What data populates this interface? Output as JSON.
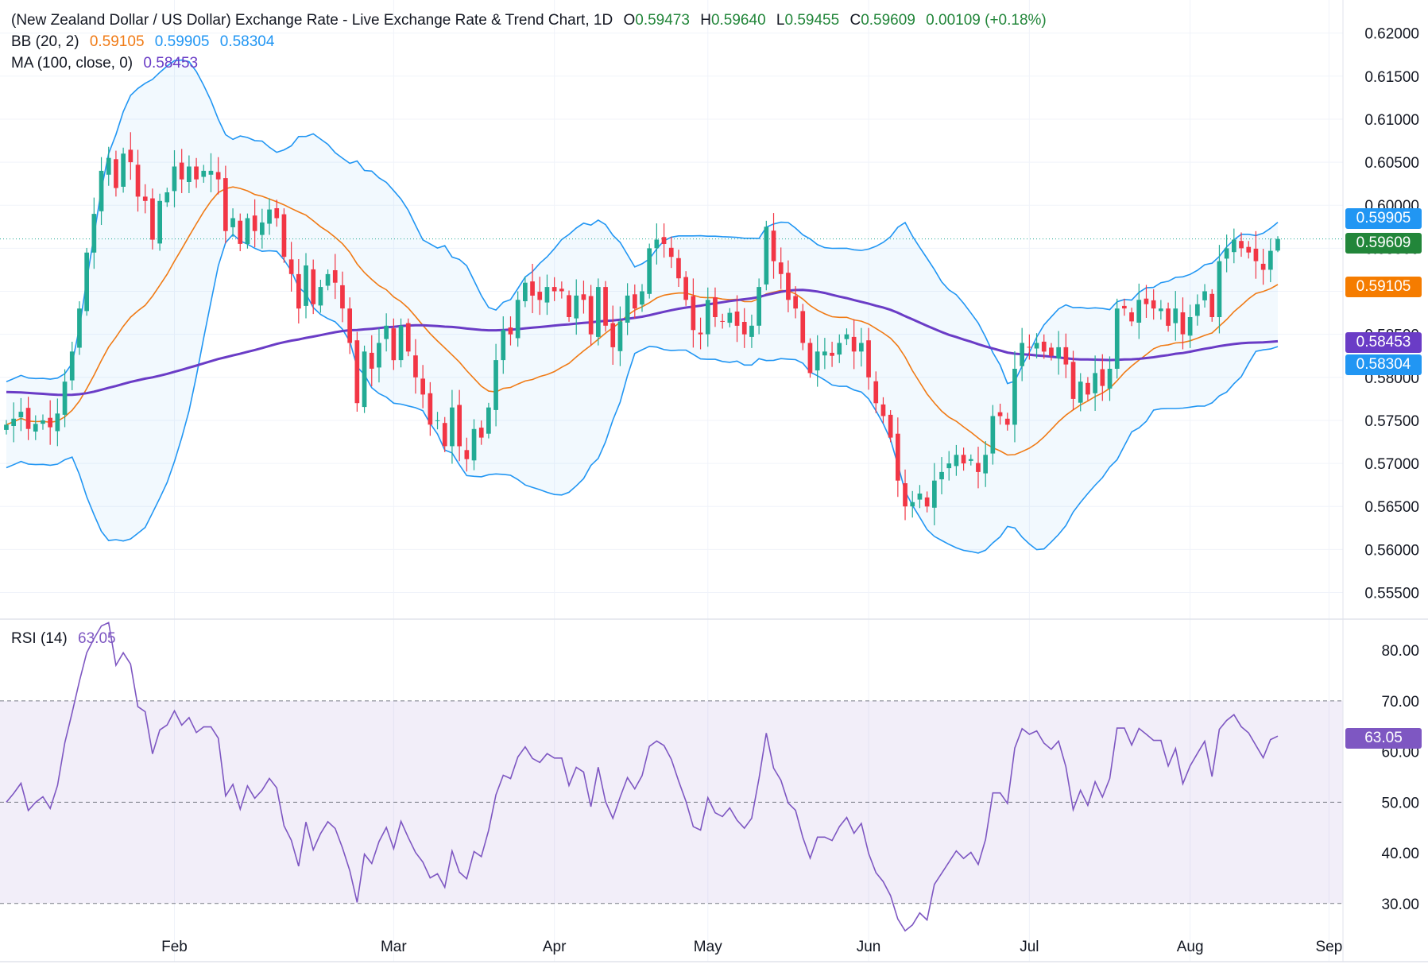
{
  "header": {
    "title": "(New Zealand Dollar / US Dollar) Exchange Rate - Live Exchange Rate & Trend Chart, 1D",
    "o_label": "O",
    "o_value": "0.59473",
    "h_label": "H",
    "h_value": "0.59640",
    "l_label": "L",
    "l_value": "0.59455",
    "c_label": "C",
    "c_value": "0.59609",
    "change": "0.00109 (+0.18%)"
  },
  "bb_legend": {
    "label": "BB (20, 2)",
    "basis": "0.59105",
    "upper": "0.59905",
    "lower": "0.58304"
  },
  "ma_legend": {
    "label": "MA (100, close, 0)",
    "value": "0.58453"
  },
  "rsi_legend": {
    "label": "RSI (14)",
    "value": "63.05"
  },
  "price_tags": {
    "upper": "0.59905",
    "close": "0.59609",
    "basis": "0.59105",
    "ma": "0.58453",
    "lower": "0.58304"
  },
  "rsi_tag": "63.05",
  "colors": {
    "up": "#22ab94",
    "down": "#f23645",
    "bb_band": "#2196f3",
    "bb_basis": "#f07b16",
    "ma": "#6a3cc6",
    "rsi": "#7e57c2",
    "tag_close": "#22863a"
  },
  "chart_data": {
    "type": "candlestick",
    "price_axis": {
      "min": 0.552,
      "max": 0.622,
      "ticks": [
        "0.62000",
        "0.61500",
        "0.61000",
        "0.60500",
        "0.60000",
        "0.59500",
        "0.59000",
        "0.58500",
        "0.58000",
        "0.57500",
        "0.57000",
        "0.56500",
        "0.56000",
        "0.55500"
      ]
    },
    "x_ticks": [
      "Feb",
      "Mar",
      "Apr",
      "May",
      "Jun",
      "Jul",
      "Aug",
      "Sep"
    ],
    "rsi_axis": {
      "min": 24,
      "max": 86,
      "ticks": [
        "80.00",
        "70.00",
        "60.00",
        "50.00",
        "40.00",
        "30.00"
      ],
      "band": [
        30,
        70
      ],
      "mid": 50
    },
    "close_series": [
      0.5745,
      0.5752,
      0.576,
      0.574,
      0.5746,
      0.575,
      0.5742,
      0.5758,
      0.5795,
      0.583,
      0.588,
      0.5945,
      0.599,
      0.604,
      0.6055,
      0.602,
      0.606,
      0.605,
      0.601,
      0.6005,
      0.596,
      0.6005,
      0.6015,
      0.6045,
      0.603,
      0.6045,
      0.603,
      0.604,
      0.604,
      0.603,
      0.597,
      0.5985,
      0.5955,
      0.5985,
      0.597,
      0.598,
      0.5995,
      0.5985,
      0.594,
      0.592,
      0.588,
      0.593,
      0.5885,
      0.5905,
      0.592,
      0.591,
      0.588,
      0.584,
      0.577,
      0.583,
      0.581,
      0.584,
      0.586,
      0.582,
      0.586,
      0.583,
      0.58,
      0.578,
      0.5745,
      0.575,
      0.572,
      0.5765,
      0.572,
      0.5705,
      0.574,
      0.573,
      0.5765,
      0.582,
      0.5855,
      0.585,
      0.589,
      0.591,
      0.5895,
      0.589,
      0.5905,
      0.59,
      0.59,
      0.587,
      0.5895,
      0.589,
      0.585,
      0.5905,
      0.586,
      0.5835,
      0.5865,
      0.5895,
      0.588,
      0.59,
      0.595,
      0.596,
      0.5955,
      0.594,
      0.5915,
      0.589,
      0.5855,
      0.585,
      0.589,
      0.587,
      0.5865,
      0.5875,
      0.586,
      0.585,
      0.586,
      0.5905,
      0.5975,
      0.5935,
      0.592,
      0.589,
      0.588,
      0.584,
      0.5805,
      0.583,
      0.583,
      0.5825,
      0.584,
      0.585,
      0.583,
      0.584,
      0.58,
      0.577,
      0.5755,
      0.573,
      0.568,
      0.565,
      0.5655,
      0.5665,
      0.565,
      0.568,
      0.569,
      0.57,
      0.571,
      0.57,
      0.5705,
      0.569,
      0.571,
      0.5755,
      0.5755,
      0.5745,
      0.581,
      0.584,
      0.5835,
      0.584,
      0.583,
      0.5825,
      0.5835,
      0.5815,
      0.5775,
      0.5795,
      0.578,
      0.5805,
      0.579,
      0.581,
      0.588,
      0.588,
      0.5865,
      0.589,
      0.5885,
      0.588,
      0.588,
      0.586,
      0.588,
      0.585,
      0.587,
      0.5885,
      0.59,
      0.587,
      0.5935,
      0.595,
      0.596,
      0.595,
      0.5945,
      0.5935,
      0.5925,
      0.5947,
      0.5961
    ],
    "bb": {
      "period": 20,
      "mult": 2,
      "basis": 0.59105,
      "upper": 0.59905,
      "lower": 0.58304
    },
    "ma": {
      "period": 100,
      "value": 0.58453
    },
    "rsi": {
      "period": 14,
      "last": 63.05
    },
    "last": {
      "open": 0.59473,
      "high": 0.5964,
      "low": 0.59455,
      "close": 0.59609
    }
  }
}
